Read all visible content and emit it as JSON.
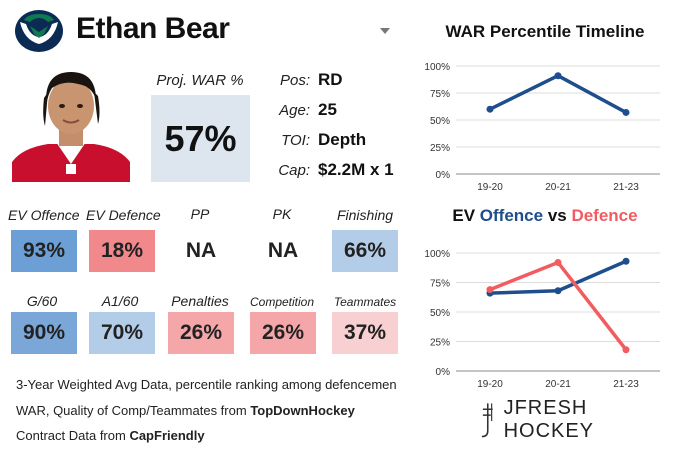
{
  "player": {
    "name": "Ethan Bear",
    "proj_war_label": "Proj. WAR %",
    "proj_war_value": "57%"
  },
  "bio": [
    {
      "label": "Pos:",
      "value": "RD"
    },
    {
      "label": "Age:",
      "value": "25"
    },
    {
      "label": "TOI:",
      "value": "Depth"
    },
    {
      "label": "Cap:",
      "value": "$2.2M x 1"
    }
  ],
  "stats_row1": [
    {
      "label": "EV Offence",
      "value": "93%",
      "color": "#6b9fd6"
    },
    {
      "label": "EV Defence",
      "value": "18%",
      "color": "#f0888c"
    },
    {
      "label": "PP",
      "value": "NA",
      "color": "#ffffff"
    },
    {
      "label": "PK",
      "value": "NA",
      "color": "#ffffff"
    },
    {
      "label": "Finishing",
      "value": "66%",
      "color": "#b3cde8"
    }
  ],
  "stats_row2": [
    {
      "label": "G/60",
      "value": "90%",
      "color": "#7aa7d8"
    },
    {
      "label": "A1/60",
      "value": "70%",
      "color": "#b3cde8"
    },
    {
      "label": "Penalties",
      "value": "26%",
      "color": "#f4a6a8"
    },
    {
      "label": "Competition",
      "value": "26%",
      "color": "#f4a6a8"
    },
    {
      "label": "Teammates",
      "value": "37%",
      "color": "#f8d0d1"
    }
  ],
  "footer": {
    "line1": "3-Year Weighted Avg Data, percentile ranking among defencemen",
    "line2_prefix": "WAR, Quality of Comp/Teammates from ",
    "line2_source": "TopDownHockey",
    "line3_prefix": "Contract Data from ",
    "line3_source": "CapFriendly"
  },
  "brand": "JFRESH HOCKEY",
  "colors": {
    "offence": "#1f4e8c",
    "defence": "#f25c60"
  },
  "chart_data": [
    {
      "type": "line",
      "title": "WAR Percentile Timeline",
      "categories": [
        "19-20",
        "20-21",
        "21-23"
      ],
      "series": [
        {
          "values": [
            60,
            91,
            57
          ]
        }
      ],
      "ylim": [
        0,
        100
      ],
      "yticks": [
        "0%",
        "25%",
        "50%",
        "75%",
        "100%"
      ],
      "grid": true
    },
    {
      "type": "line",
      "title_parts": [
        "EV ",
        "Offence",
        " vs ",
        "Defence"
      ],
      "categories": [
        "19-20",
        "20-21",
        "21-23"
      ],
      "series": [
        {
          "name": "Offence",
          "values": [
            66,
            68,
            93
          ]
        },
        {
          "name": "Defence",
          "values": [
            69,
            92,
            18
          ]
        }
      ],
      "ylim": [
        0,
        100
      ],
      "yticks": [
        "0%",
        "25%",
        "50%",
        "75%",
        "100%"
      ],
      "grid": true
    }
  ]
}
